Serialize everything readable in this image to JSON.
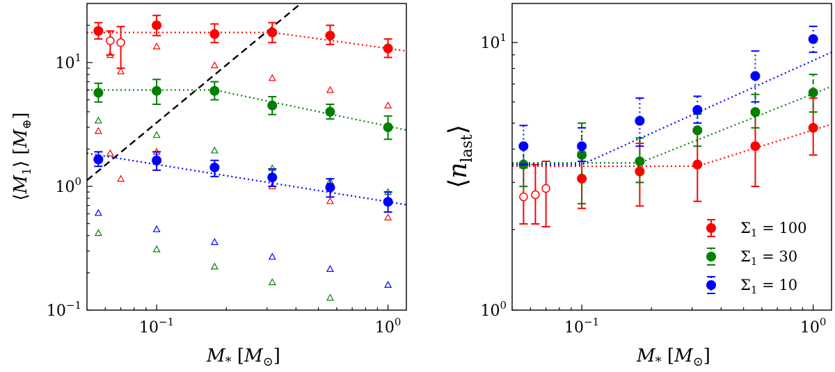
{
  "chart_data": [
    {
      "type": "scatter",
      "title": "",
      "xlabel": "M* [M⊙]",
      "ylabel": "⟨M1⟩ [M⊕]",
      "xscale": "log",
      "yscale": "log",
      "xlim": [
        0.05,
        1.2
      ],
      "ylim": [
        0.1,
        30
      ],
      "x_ticks": [
        {
          "base": "10",
          "exp": "−1"
        },
        {
          "base": "10",
          "exp": "0"
        }
      ],
      "y_ticks": [
        {
          "base": "10",
          "exp": "−1"
        },
        {
          "base": "10",
          "exp": "0"
        },
        {
          "base": "10",
          "exp": "1"
        }
      ],
      "series": [
        {
          "name": "Σ1 = 100",
          "color": "#ff0000",
          "points": [
            {
              "x": 0.056,
              "y": 18,
              "lo": 15.5,
              "hi": 21
            },
            {
              "x": 0.1,
              "y": 20,
              "lo": 16.5,
              "hi": 24
            },
            {
              "x": 0.178,
              "y": 17,
              "lo": 14.5,
              "hi": 20.5
            },
            {
              "x": 0.316,
              "y": 17.5,
              "lo": 14.5,
              "hi": 21
            },
            {
              "x": 0.562,
              "y": 16.5,
              "lo": 14,
              "hi": 20
            },
            {
              "x": 1.0,
              "y": 13,
              "lo": 11,
              "hi": 15.5
            }
          ],
          "open_points": [
            {
              "x": 0.063,
              "y": 15,
              "lo": 11.5,
              "hi": 18
            },
            {
              "x": 0.07,
              "y": 14.5,
              "lo": 9,
              "hi": 19.5
            }
          ],
          "triangles": [
            {
              "x": 0.056,
              "y": 2.8
            },
            {
              "x": 0.063,
              "y": 11.5
            },
            {
              "x": 0.07,
              "y": 8.5
            },
            {
              "x": 0.1,
              "y": 13.5
            },
            {
              "x": 0.178,
              "y": 9.5
            },
            {
              "x": 0.316,
              "y": 7.5
            },
            {
              "x": 0.562,
              "y": 6.0
            },
            {
              "x": 1.0,
              "y": 4.5
            },
            {
              "x": 0.063,
              "y": 1.85
            },
            {
              "x": 0.07,
              "y": 1.15
            },
            {
              "x": 0.1,
              "y": 1.9
            },
            {
              "x": 0.316,
              "y": 1.0
            },
            {
              "x": 0.562,
              "y": 0.76
            },
            {
              "x": 1.0,
              "y": 0.56
            }
          ],
          "fit": [
            [
              0.05,
              17.5
            ],
            [
              0.316,
              17.5
            ],
            [
              1.2,
              12.4
            ]
          ]
        },
        {
          "name": "Σ1 = 30",
          "color": "#008000",
          "points": [
            {
              "x": 0.056,
              "y": 5.7,
              "lo": 4.8,
              "hi": 6.8
            },
            {
              "x": 0.1,
              "y": 5.9,
              "lo": 4.6,
              "hi": 7.3
            },
            {
              "x": 0.178,
              "y": 5.9,
              "lo": 5.0,
              "hi": 7.0
            },
            {
              "x": 0.316,
              "y": 4.5,
              "lo": 3.8,
              "hi": 5.3
            },
            {
              "x": 0.562,
              "y": 4.0,
              "lo": 3.5,
              "hi": 4.6
            },
            {
              "x": 1.0,
              "y": 3.0,
              "lo": 2.4,
              "hi": 3.7
            }
          ],
          "open_points": [],
          "triangles": [
            {
              "x": 0.056,
              "y": 3.4
            },
            {
              "x": 0.1,
              "y": 2.6
            },
            {
              "x": 0.178,
              "y": 1.95
            },
            {
              "x": 0.316,
              "y": 1.4
            },
            {
              "x": 0.562,
              "y": 1.1
            },
            {
              "x": 1.0,
              "y": 0.9
            },
            {
              "x": 0.056,
              "y": 0.42
            },
            {
              "x": 0.1,
              "y": 0.31
            },
            {
              "x": 0.178,
              "y": 0.225
            },
            {
              "x": 0.316,
              "y": 0.168
            },
            {
              "x": 0.562,
              "y": 0.126
            }
          ],
          "fit": [
            [
              0.05,
              6.0
            ],
            [
              0.178,
              6.0
            ],
            [
              1.2,
              2.85
            ]
          ]
        },
        {
          "name": "Σ1 = 10",
          "color": "#0000ff",
          "points": [
            {
              "x": 0.056,
              "y": 1.65,
              "lo": 1.45,
              "hi": 1.9
            },
            {
              "x": 0.1,
              "y": 1.62,
              "lo": 1.35,
              "hi": 1.9
            },
            {
              "x": 0.178,
              "y": 1.42,
              "lo": 1.2,
              "hi": 1.62
            },
            {
              "x": 0.316,
              "y": 1.18,
              "lo": 1.0,
              "hi": 1.38
            },
            {
              "x": 0.562,
              "y": 0.98,
              "lo": 0.82,
              "hi": 1.15
            },
            {
              "x": 1.0,
              "y": 0.75,
              "lo": 0.62,
              "hi": 0.9
            }
          ],
          "open_points": [],
          "triangles": [
            {
              "x": 0.056,
              "y": 0.61
            },
            {
              "x": 0.1,
              "y": 0.45
            },
            {
              "x": 0.178,
              "y": 0.355
            },
            {
              "x": 0.316,
              "y": 0.27
            },
            {
              "x": 0.562,
              "y": 0.215
            },
            {
              "x": 1.0,
              "y": 0.16
            }
          ],
          "fit": [
            [
              0.05,
              1.85
            ],
            [
              1.2,
              0.71
            ]
          ]
        }
      ],
      "reference_line": {
        "style": "dashed",
        "color": "#000000",
        "points": [
          [
            0.05,
            1.12
          ],
          [
            0.42,
            30
          ]
        ]
      }
    },
    {
      "type": "scatter",
      "title": "",
      "xlabel": "M* [M⊙]",
      "ylabel": "⟨n_last⟩",
      "xscale": "log",
      "yscale": "log",
      "xlim": [
        0.05,
        1.2
      ],
      "ylim": [
        1,
        14
      ],
      "x_ticks": [
        {
          "base": "10",
          "exp": "−1"
        },
        {
          "base": "10",
          "exp": "0"
        }
      ],
      "y_ticks": [
        {
          "base": "10",
          "exp": "0"
        },
        {
          "base": "10",
          "exp": "1"
        }
      ],
      "legend_position": "bottom-right",
      "series": [
        {
          "name": "Σ1 = 100",
          "label_symbol": "Σ",
          "label_sub": "1",
          "label_value": "= 100",
          "color": "#ff0000",
          "style": "solid",
          "points": [
            {
              "x": 0.1,
              "y": 3.1,
              "lo": 2.4,
              "hi": 3.9
            },
            {
              "x": 0.178,
              "y": 3.3,
              "lo": 2.45,
              "hi": 4.2
            },
            {
              "x": 0.316,
              "y": 3.5,
              "lo": 2.55,
              "hi": 4.75
            },
            {
              "x": 0.562,
              "y": 4.1,
              "lo": 2.9,
              "hi": 5.5
            },
            {
              "x": 1.0,
              "y": 4.8,
              "lo": 3.8,
              "hi": 6.2
            }
          ],
          "open_points": [
            {
              "x": 0.056,
              "y": 2.65,
              "lo": 2.1,
              "hi": 3.4
            },
            {
              "x": 0.063,
              "y": 2.7,
              "lo": 2.1,
              "hi": 3.5
            },
            {
              "x": 0.07,
              "y": 2.85,
              "lo": 2.05,
              "hi": 3.6
            }
          ],
          "fit": [
            [
              0.05,
              3.45
            ],
            [
              0.316,
              3.45
            ],
            [
              1.2,
              4.95
            ]
          ]
        },
        {
          "name": "Σ1 = 30",
          "label_symbol": "Σ",
          "label_sub": "1",
          "label_value": "= 30",
          "color": "#008000",
          "style": "dashdot",
          "points": [
            {
              "x": 0.056,
              "y": 3.5,
              "lo": 2.9,
              "hi": 4.1
            },
            {
              "x": 0.1,
              "y": 3.8,
              "lo": 2.5,
              "hi": 5.0
            },
            {
              "x": 0.178,
              "y": 3.6,
              "lo": 3.0,
              "hi": 4.4
            },
            {
              "x": 0.316,
              "y": 4.7,
              "lo": 4.1,
              "hi": 5.4
            },
            {
              "x": 0.562,
              "y": 5.5,
              "lo": 4.8,
              "hi": 6.4
            },
            {
              "x": 1.0,
              "y": 6.5,
              "lo": 5.5,
              "hi": 7.6
            }
          ],
          "open_points": [],
          "fit": [
            [
              0.05,
              3.55
            ],
            [
              0.178,
              3.55
            ],
            [
              1.2,
              6.85
            ]
          ]
        },
        {
          "name": "Σ1 = 10",
          "label_symbol": "Σ",
          "label_sub": "1",
          "label_value": "= 10",
          "color": "#0000ff",
          "style": "dotted",
          "points": [
            {
              "x": 0.056,
              "y": 4.1,
              "lo": 3.5,
              "hi": 4.9
            },
            {
              "x": 0.1,
              "y": 4.1,
              "lo": 3.6,
              "hi": 4.8
            },
            {
              "x": 0.178,
              "y": 5.1,
              "lo": 4.1,
              "hi": 6.2
            },
            {
              "x": 0.316,
              "y": 5.6,
              "lo": 5.0,
              "hi": 6.3
            },
            {
              "x": 0.562,
              "y": 7.5,
              "lo": 6.0,
              "hi": 9.3
            },
            {
              "x": 1.0,
              "y": 10.3,
              "lo": 9.2,
              "hi": 11.5
            }
          ],
          "open_points": [],
          "fit": [
            [
              0.05,
              3.5
            ],
            [
              0.1,
              3.5
            ],
            [
              1.2,
              9.2
            ]
          ]
        }
      ]
    }
  ]
}
